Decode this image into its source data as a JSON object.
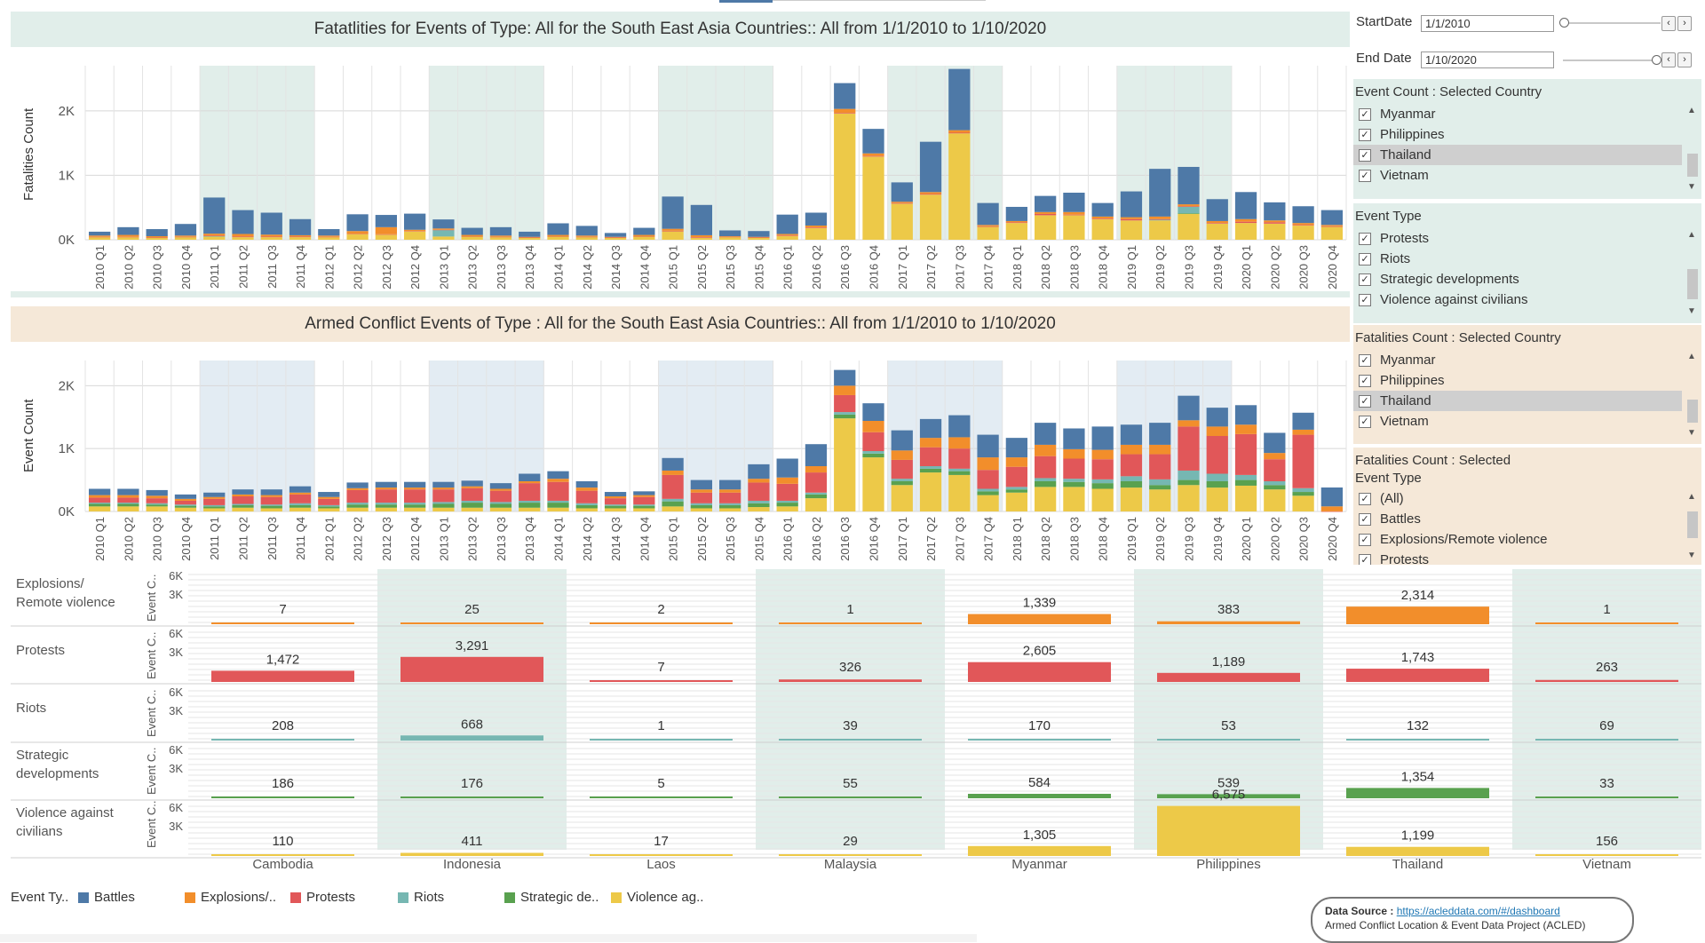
{
  "top_chart": {
    "title": "Fatatlities for Events of Type: All  for the South East Asia Countries::  All from 1/1/2010 to 1/10/2020",
    "ylabel": "Fatalities Count"
  },
  "mid_chart": {
    "title": "Armed Conflict Events of Type : All  for the South East Asia Countries::  All from 1/1/2010 to 1/10/2020",
    "ylabel": "Event Count"
  },
  "controls": {
    "start_label": "StartDate",
    "start_value": "1/1/2010",
    "end_label": "End Date",
    "end_value": "1/10/2020",
    "prev_glyph": "‹",
    "next_glyph": "›"
  },
  "filters": {
    "event_count_country": {
      "title": "Event Count : Selected Country",
      "items": [
        "Myanmar",
        "Philippines",
        "Thailand",
        "Vietnam"
      ],
      "selected": "Thailand"
    },
    "event_type": {
      "title": "Event Type",
      "items": [
        "Protests",
        "Riots",
        "Strategic developments",
        "Violence against civilians"
      ]
    },
    "fatalities_country": {
      "title": "Fatalities Count : Selected Country",
      "items": [
        "Myanmar",
        "Philippines",
        "Thailand",
        "Vietnam"
      ],
      "selected": "Thailand"
    },
    "fatalities_event_type": {
      "title_line1": "Fatalities Count : Selected",
      "title_line2": "Event Type",
      "items": [
        "(All)",
        "Battles",
        "Explosions/Remote violence",
        "Protests"
      ]
    },
    "check_glyph": "✓"
  },
  "legend": {
    "title": "Event Ty..",
    "items": [
      {
        "label": "Battles",
        "color": "#4e79a7"
      },
      {
        "label": "Explosions/..",
        "color": "#f28e2b"
      },
      {
        "label": "Protests",
        "color": "#e15759"
      },
      {
        "label": "Riots",
        "color": "#76b7b2"
      },
      {
        "label": "Strategic de..",
        "color": "#59a14f"
      },
      {
        "label": "Violence ag..",
        "color": "#edc948"
      }
    ]
  },
  "source": {
    "prefix": "Data Source : ",
    "link": "https://acleddata.com/#/dashboard",
    "line2": "Armed Conflict Location & Event Data Project (ACLED)"
  },
  "chart_data": [
    {
      "type": "bar",
      "stacked": true,
      "title": "Fatatlities for Events of Type: All  for the South East Asia Countries::  All from 1/1/2010 to 1/10/2020",
      "ylabel": "Fatalities Count",
      "ytick_labels": [
        "0K",
        "1K",
        "2K"
      ],
      "ylim": [
        0,
        2700
      ],
      "categories": [
        "2010 Q1",
        "2010 Q2",
        "2010 Q3",
        "2010 Q4",
        "2011 Q1",
        "2011 Q2",
        "2011 Q3",
        "2011 Q4",
        "2012 Q1",
        "2012 Q2",
        "2012 Q3",
        "2012 Q4",
        "2013 Q1",
        "2013 Q2",
        "2013 Q3",
        "2013 Q4",
        "2014 Q1",
        "2014 Q2",
        "2014 Q3",
        "2014 Q4",
        "2015 Q1",
        "2015 Q2",
        "2015 Q3",
        "2015 Q4",
        "2016 Q1",
        "2016 Q2",
        "2016 Q3",
        "2016 Q4",
        "2017 Q1",
        "2017 Q2",
        "2017 Q3",
        "2017 Q4",
        "2018 Q1",
        "2018 Q2",
        "2018 Q3",
        "2018 Q4",
        "2019 Q1",
        "2019 Q2",
        "2019 Q3",
        "2019 Q4",
        "2020 Q1",
        "2020 Q2",
        "2020 Q3",
        "2020 Q4"
      ],
      "shaded_years": [
        "2011",
        "2013",
        "2015",
        "2017",
        "2019"
      ],
      "series": [
        {
          "name": "Battles",
          "values": [
            60,
            120,
            110,
            180,
            560,
            370,
            340,
            250,
            100,
            260,
            190,
            250,
            140,
            110,
            130,
            80,
            180,
            150,
            60,
            110,
            500,
            470,
            90,
            90,
            300,
            200,
            400,
            380,
            300,
            780,
            950,
            340,
            220,
            250,
            300,
            210,
            400,
            740,
            580,
            340,
            420,
            280,
            260,
            230
          ]
        },
        {
          "name": "Explosions/..",
          "values": [
            20,
            30,
            20,
            20,
            30,
            40,
            30,
            20,
            20,
            40,
            110,
            20,
            20,
            20,
            20,
            10,
            20,
            20,
            10,
            20,
            30,
            30,
            10,
            10,
            20,
            30,
            60,
            40,
            20,
            30,
            40,
            20,
            20,
            30,
            40,
            30,
            30,
            40,
            30,
            30,
            40,
            30,
            30,
            20
          ]
        },
        {
          "name": "Protests",
          "values": [
            5,
            5,
            5,
            5,
            10,
            10,
            10,
            10,
            5,
            5,
            5,
            5,
            5,
            5,
            5,
            5,
            5,
            5,
            5,
            5,
            10,
            10,
            5,
            5,
            10,
            10,
            10,
            10,
            10,
            10,
            10,
            10,
            10,
            20,
            10,
            10,
            20,
            10,
            10,
            10,
            20,
            20,
            10,
            10
          ]
        },
        {
          "name": "Riots",
          "values": [
            0,
            0,
            0,
            0,
            5,
            0,
            0,
            0,
            0,
            0,
            0,
            0,
            100,
            0,
            0,
            0,
            0,
            0,
            0,
            0,
            0,
            0,
            0,
            0,
            0,
            0,
            0,
            0,
            0,
            0,
            0,
            0,
            0,
            0,
            0,
            0,
            0,
            10,
            100,
            0,
            0,
            0,
            0,
            0
          ]
        },
        {
          "name": "Strategic de..",
          "values": [
            0,
            0,
            0,
            0,
            0,
            0,
            0,
            0,
            0,
            0,
            0,
            0,
            0,
            0,
            0,
            0,
            0,
            0,
            0,
            0,
            0,
            0,
            0,
            0,
            0,
            0,
            0,
            0,
            0,
            0,
            0,
            0,
            0,
            0,
            0,
            0,
            0,
            0,
            10,
            0,
            0,
            0,
            0,
            0
          ]
        },
        {
          "name": "Violence ag..",
          "values": [
            40,
            40,
            30,
            40,
            50,
            40,
            40,
            40,
            40,
            90,
            80,
            130,
            50,
            50,
            40,
            30,
            50,
            40,
            30,
            50,
            130,
            30,
            40,
            30,
            60,
            180,
            1960,
            1290,
            560,
            700,
            1650,
            200,
            260,
            380,
            380,
            320,
            300,
            300,
            400,
            250,
            260,
            250,
            220,
            200
          ]
        }
      ]
    },
    {
      "type": "bar",
      "stacked": true,
      "title": "Armed Conflict Events of Type : All  for the South East Asia Countries::  All from 1/1/2010 to 1/10/2020",
      "ylabel": "Event Count",
      "ytick_labels": [
        "0K",
        "1K",
        "2K"
      ],
      "ylim": [
        0,
        2400
      ],
      "categories": [
        "2010 Q1",
        "2010 Q2",
        "2010 Q3",
        "2010 Q4",
        "2011 Q1",
        "2011 Q2",
        "2011 Q3",
        "2011 Q4",
        "2012 Q1",
        "2012 Q2",
        "2012 Q3",
        "2012 Q4",
        "2013 Q1",
        "2013 Q2",
        "2013 Q3",
        "2013 Q4",
        "2014 Q1",
        "2014 Q2",
        "2014 Q3",
        "2014 Q4",
        "2015 Q1",
        "2015 Q2",
        "2015 Q3",
        "2015 Q4",
        "2016 Q1",
        "2016 Q2",
        "2016 Q3",
        "2016 Q4",
        "2017 Q1",
        "2017 Q2",
        "2017 Q3",
        "2017 Q4",
        "2018 Q1",
        "2018 Q2",
        "2018 Q3",
        "2018 Q4",
        "2019 Q1",
        "2019 Q2",
        "2019 Q3",
        "2019 Q4",
        "2020 Q1",
        "2020 Q2",
        "2020 Q3",
        "2020 Q4"
      ],
      "shaded_years": [
        "2011",
        "2013",
        "2015",
        "2017",
        "2019"
      ],
      "series": [
        {
          "name": "Battles",
          "values": [
            100,
            100,
            90,
            70,
            70,
            80,
            90,
            100,
            80,
            90,
            90,
            90,
            90,
            90,
            90,
            120,
            120,
            100,
            70,
            60,
            200,
            150,
            150,
            230,
            300,
            350,
            250,
            280,
            320,
            300,
            350,
            360,
            310,
            350,
            330,
            370,
            320,
            350,
            390,
            300,
            310,
            320,
            270,
            300
          ]
        },
        {
          "name": "Explosions/..",
          "values": [
            40,
            40,
            40,
            30,
            30,
            30,
            30,
            30,
            30,
            30,
            30,
            30,
            30,
            30,
            30,
            30,
            50,
            50,
            30,
            30,
            70,
            50,
            50,
            60,
            100,
            100,
            150,
            180,
            150,
            150,
            180,
            200,
            150,
            180,
            150,
            150,
            150,
            150,
            100,
            150,
            150,
            100,
            80,
            80
          ]
        },
        {
          "name": "Protests",
          "values": [
            80,
            80,
            80,
            60,
            100,
            120,
            120,
            140,
            100,
            200,
            210,
            210,
            200,
            200,
            180,
            280,
            300,
            200,
            100,
            120,
            380,
            170,
            170,
            290,
            270,
            320,
            270,
            300,
            300,
            300,
            320,
            300,
            320,
            350,
            320,
            320,
            350,
            400,
            700,
            600,
            650,
            350,
            850,
            1
          ]
        },
        {
          "name": "Riots",
          "values": [
            20,
            20,
            20,
            20,
            20,
            20,
            20,
            30,
            20,
            30,
            30,
            30,
            30,
            30,
            30,
            30,
            30,
            30,
            20,
            20,
            40,
            30,
            30,
            40,
            30,
            30,
            40,
            40,
            40,
            40,
            40,
            40,
            40,
            50,
            50,
            60,
            80,
            90,
            150,
            120,
            80,
            60,
            60,
            0
          ]
        },
        {
          "name": "Strategic de..",
          "values": [
            40,
            40,
            30,
            30,
            30,
            40,
            40,
            40,
            30,
            50,
            50,
            50,
            60,
            80,
            60,
            80,
            80,
            50,
            40,
            40,
            80,
            50,
            50,
            60,
            60,
            60,
            60,
            60,
            60,
            60,
            60,
            60,
            50,
            90,
            80,
            90,
            100,
            70,
            80,
            100,
            90,
            70,
            60,
            0
          ]
        },
        {
          "name": "Violence ag..",
          "values": [
            80,
            80,
            80,
            60,
            50,
            60,
            50,
            60,
            50,
            60,
            60,
            60,
            60,
            60,
            60,
            60,
            60,
            50,
            50,
            50,
            80,
            50,
            50,
            70,
            80,
            210,
            1480,
            860,
            420,
            620,
            580,
            260,
            300,
            390,
            390,
            360,
            380,
            350,
            420,
            380,
            410,
            350,
            250,
            0
          ]
        }
      ]
    },
    {
      "type": "bar",
      "title": "",
      "row_axis_label": "Event C..",
      "ytick_labels": [
        "6K",
        "3K"
      ],
      "ylim": [
        0,
        7000
      ],
      "countries": [
        "Cambodia",
        "Indonesia",
        "Laos",
        "Malaysia",
        "Myanmar",
        "Philippines",
        "Thailand",
        "Vietnam"
      ],
      "rows": [
        {
          "label": "Explosions/ Remote violence",
          "values": [
            7,
            25,
            2,
            1,
            1339,
            383,
            2314,
            1
          ],
          "labels": [
            "7",
            "25",
            "2",
            "1",
            "1,339",
            "383",
            "2,314",
            "1"
          ],
          "color": "#f28e2b"
        },
        {
          "label": "Protests",
          "values": [
            1472,
            3291,
            7,
            326,
            2605,
            1189,
            1743,
            263
          ],
          "labels": [
            "1,472",
            "3,291",
            "7",
            "326",
            "2,605",
            "1,189",
            "1,743",
            "263"
          ],
          "color": "#e15759"
        },
        {
          "label": "Riots",
          "values": [
            208,
            668,
            1,
            39,
            170,
            53,
            132,
            69
          ],
          "labels": [
            "208",
            "668",
            "1",
            "39",
            "170",
            "53",
            "132",
            "69"
          ],
          "color": "#76b7b2"
        },
        {
          "label": "Strategic developments",
          "values": [
            186,
            176,
            5,
            55,
            584,
            539,
            1354,
            33
          ],
          "labels": [
            "186",
            "176",
            "5",
            "55",
            "584",
            "539",
            "1,354",
            "33"
          ],
          "color": "#59a14f"
        },
        {
          "label": "Violence against civilians",
          "values": [
            110,
            411,
            17,
            29,
            1305,
            6575,
            1199,
            156
          ],
          "labels": [
            "110",
            "411",
            "17",
            "29",
            "1,305",
            "6,575",
            "1,199",
            "156"
          ],
          "color": "#edc948"
        }
      ]
    }
  ]
}
